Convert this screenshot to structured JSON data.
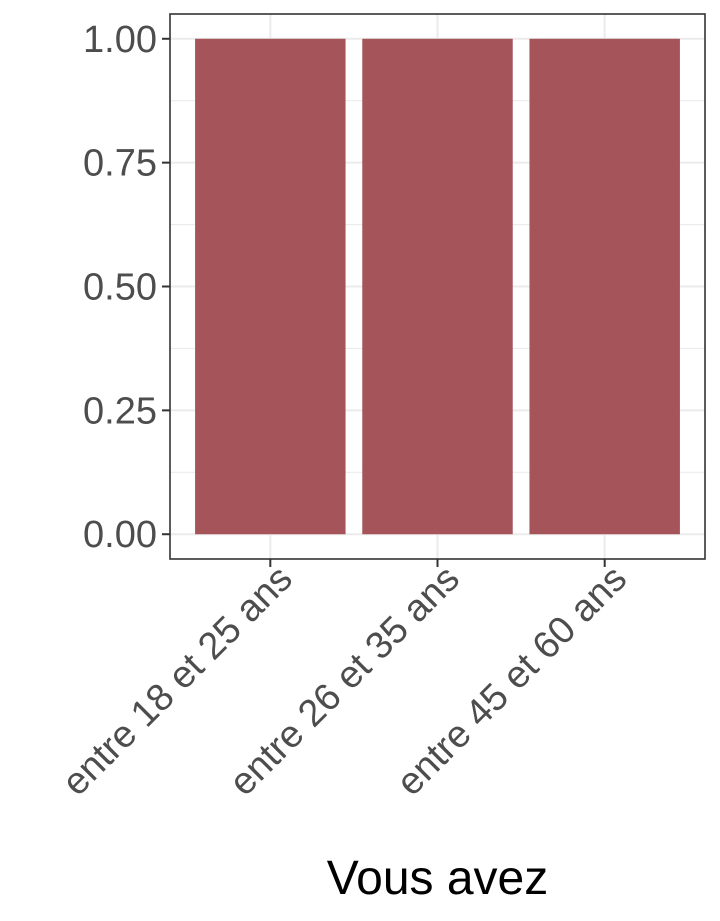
{
  "chart_data": {
    "type": "bar",
    "categories": [
      "entre 18 et 25 ans",
      "entre 26 et 35 ans",
      "entre 45 et 60 ans"
    ],
    "values": [
      1.0,
      1.0,
      1.0
    ],
    "xlabel": "Vous avez",
    "ylabel": "",
    "ylim": [
      -0.05,
      1.05
    ],
    "yticks": [
      "0.00",
      "0.25",
      "0.50",
      "0.75",
      "1.00"
    ],
    "grid": true,
    "bar_color": "#a5545a",
    "grid_color": "#ebebeb",
    "panel_border_color": "#333333"
  }
}
